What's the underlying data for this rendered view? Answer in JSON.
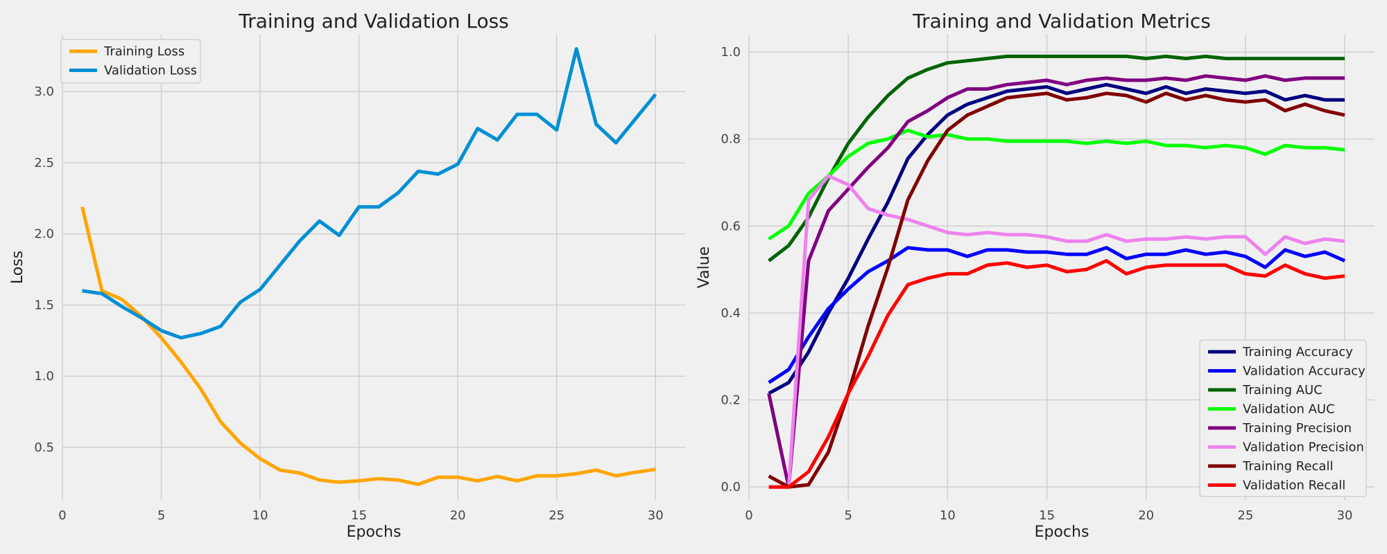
{
  "chart_data": [
    {
      "type": "line",
      "title": "Training and Validation Loss",
      "xlabel": "Epochs",
      "ylabel": "Loss",
      "xlim": [
        0,
        31.5
      ],
      "ylim": [
        0.13,
        3.4
      ],
      "xticks": [
        0,
        5,
        10,
        15,
        20,
        25,
        30
      ],
      "yticks": [
        0.5,
        1.0,
        1.5,
        2.0,
        2.5,
        3.0
      ],
      "ytick_labels": [
        "0.5",
        "1.0",
        "1.5",
        "2.0",
        "2.5",
        "3.0"
      ],
      "grid": true,
      "legend": "upper-left",
      "x": [
        1,
        2,
        3,
        4,
        5,
        6,
        7,
        8,
        9,
        10,
        11,
        12,
        13,
        14,
        15,
        16,
        17,
        18,
        19,
        20,
        21,
        22,
        23,
        24,
        25,
        26,
        27,
        28,
        29,
        30
      ],
      "series": [
        {
          "name": "Training Loss",
          "color": "#ffa500",
          "values": [
            2.19,
            1.6,
            1.54,
            1.42,
            1.27,
            1.1,
            0.91,
            0.68,
            0.53,
            0.42,
            0.34,
            0.32,
            0.27,
            0.255,
            0.265,
            0.28,
            0.27,
            0.24,
            0.29,
            0.29,
            0.265,
            0.295,
            0.265,
            0.3,
            0.3,
            0.315,
            0.34,
            0.3,
            0.325,
            0.345
          ]
        },
        {
          "name": "Validation Loss",
          "color": "#008fd5",
          "values": [
            1.6,
            1.58,
            1.49,
            1.41,
            1.32,
            1.27,
            1.3,
            1.35,
            1.52,
            1.61,
            1.78,
            1.95,
            2.09,
            1.99,
            2.19,
            2.19,
            2.29,
            2.44,
            2.42,
            2.49,
            2.74,
            2.66,
            2.84,
            2.84,
            2.73,
            3.3,
            2.77,
            2.64,
            2.81,
            2.98
          ]
        }
      ]
    },
    {
      "type": "line",
      "title": "Training and Validation Metrics",
      "xlabel": "Epochs",
      "ylabel": "Value",
      "xlim": [
        0,
        31.5
      ],
      "ylim": [
        -0.03,
        1.04
      ],
      "xticks": [
        0,
        5,
        10,
        15,
        20,
        25,
        30
      ],
      "yticks": [
        0.0,
        0.2,
        0.4,
        0.6,
        0.8,
        1.0
      ],
      "ytick_labels": [
        "0.0",
        "0.2",
        "0.4",
        "0.6",
        "0.8",
        "1.0"
      ],
      "grid": true,
      "legend": "lower-right",
      "x": [
        1,
        2,
        3,
        4,
        5,
        6,
        7,
        8,
        9,
        10,
        11,
        12,
        13,
        14,
        15,
        16,
        17,
        18,
        19,
        20,
        21,
        22,
        23,
        24,
        25,
        26,
        27,
        28,
        29,
        30
      ],
      "series": [
        {
          "name": "Training Accuracy",
          "color": "#000080",
          "values": [
            0.215,
            0.24,
            0.31,
            0.4,
            0.48,
            0.57,
            0.655,
            0.755,
            0.81,
            0.855,
            0.88,
            0.895,
            0.91,
            0.915,
            0.92,
            0.905,
            0.915,
            0.925,
            0.915,
            0.905,
            0.92,
            0.905,
            0.915,
            0.91,
            0.905,
            0.91,
            0.89,
            0.9,
            0.89,
            0.89
          ]
        },
        {
          "name": "Validation Accuracy",
          "color": "#0000ff",
          "values": [
            0.24,
            0.27,
            0.345,
            0.41,
            0.455,
            0.495,
            0.52,
            0.55,
            0.545,
            0.545,
            0.53,
            0.545,
            0.545,
            0.54,
            0.54,
            0.535,
            0.535,
            0.55,
            0.525,
            0.535,
            0.535,
            0.545,
            0.535,
            0.54,
            0.53,
            0.505,
            0.545,
            0.53,
            0.54,
            0.52
          ]
        },
        {
          "name": "Training AUC",
          "color": "#006400",
          "values": [
            0.52,
            0.555,
            0.62,
            0.71,
            0.79,
            0.85,
            0.9,
            0.94,
            0.96,
            0.975,
            0.98,
            0.985,
            0.99,
            0.99,
            0.99,
            0.99,
            0.99,
            0.99,
            0.99,
            0.985,
            0.99,
            0.985,
            0.99,
            0.985,
            0.985,
            0.985,
            0.985,
            0.985,
            0.985,
            0.985
          ]
        },
        {
          "name": "Validation AUC",
          "color": "#00ff00",
          "values": [
            0.57,
            0.6,
            0.675,
            0.715,
            0.76,
            0.79,
            0.8,
            0.82,
            0.805,
            0.81,
            0.8,
            0.8,
            0.795,
            0.795,
            0.795,
            0.795,
            0.79,
            0.795,
            0.79,
            0.795,
            0.785,
            0.785,
            0.78,
            0.785,
            0.78,
            0.765,
            0.785,
            0.78,
            0.78,
            0.775
          ]
        },
        {
          "name": "Training Precision",
          "color": "#800080",
          "values": [
            0.215,
            0.0,
            0.52,
            0.635,
            0.685,
            0.735,
            0.78,
            0.84,
            0.865,
            0.895,
            0.915,
            0.915,
            0.925,
            0.93,
            0.935,
            0.925,
            0.935,
            0.94,
            0.935,
            0.935,
            0.94,
            0.935,
            0.945,
            0.94,
            0.935,
            0.945,
            0.935,
            0.94,
            0.94,
            0.94
          ]
        },
        {
          "name": "Validation Precision",
          "color": "#ee82ee",
          "values": [
            0.0,
            0.0,
            0.66,
            0.715,
            0.695,
            0.64,
            0.625,
            0.615,
            0.6,
            0.585,
            0.58,
            0.585,
            0.58,
            0.58,
            0.575,
            0.565,
            0.565,
            0.58,
            0.565,
            0.57,
            0.57,
            0.575,
            0.57,
            0.575,
            0.575,
            0.535,
            0.575,
            0.56,
            0.57,
            0.565
          ]
        },
        {
          "name": "Training Recall",
          "color": "#800000",
          "values": [
            0.025,
            0.0,
            0.005,
            0.08,
            0.215,
            0.37,
            0.505,
            0.66,
            0.75,
            0.82,
            0.855,
            0.875,
            0.895,
            0.9,
            0.905,
            0.89,
            0.895,
            0.905,
            0.9,
            0.885,
            0.905,
            0.89,
            0.9,
            0.89,
            0.885,
            0.89,
            0.865,
            0.88,
            0.865,
            0.855
          ]
        },
        {
          "name": "Validation Recall",
          "color": "#ff0000",
          "values": [
            0.0,
            0.0,
            0.035,
            0.115,
            0.215,
            0.3,
            0.395,
            0.465,
            0.48,
            0.49,
            0.49,
            0.51,
            0.515,
            0.505,
            0.51,
            0.495,
            0.5,
            0.52,
            0.49,
            0.505,
            0.51,
            0.51,
            0.51,
            0.51,
            0.49,
            0.485,
            0.51,
            0.49,
            0.48,
            0.485
          ]
        }
      ]
    }
  ]
}
